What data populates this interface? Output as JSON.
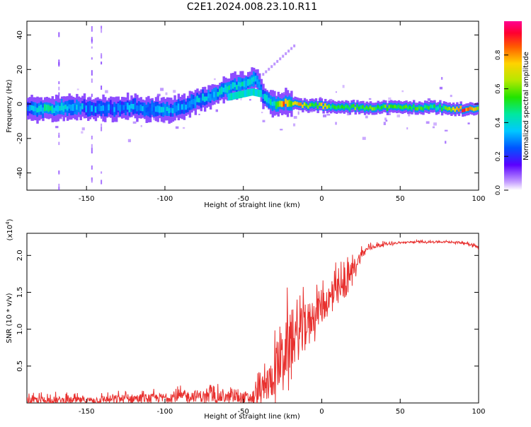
{
  "title": "C2E1.2024.008.23.10.R11",
  "chart_data": [
    {
      "type": "heatmap",
      "title": "",
      "xlabel": "Height of straight line (km)",
      "ylabel": "Frequency (Hz)",
      "xlim": [
        -188,
        100
      ],
      "ylim": [
        -50,
        48
      ],
      "xticks": [
        -150,
        -100,
        -50,
        0,
        50,
        100
      ],
      "yticks": [
        -40,
        -20,
        0,
        20,
        40
      ],
      "xtick_labels": [
        "-150",
        "-100",
        "-50",
        "0",
        "50",
        "100"
      ],
      "ytick_labels": [
        "-40",
        "-20",
        "0",
        "20",
        "40"
      ],
      "ridge": [
        {
          "x": -188,
          "y": -3,
          "a": 0.3
        },
        {
          "x": -175,
          "y": -3,
          "a": 0.45
        },
        {
          "x": -160,
          "y": -2,
          "a": 0.35
        },
        {
          "x": -150,
          "y": -2,
          "a": 0.3
        },
        {
          "x": -140,
          "y": -3,
          "a": 0.3
        },
        {
          "x": -130,
          "y": -2,
          "a": 0.3
        },
        {
          "x": -120,
          "y": -2,
          "a": 0.3
        },
        {
          "x": -110,
          "y": -3,
          "a": 0.3
        },
        {
          "x": -100,
          "y": -4,
          "a": 0.35
        },
        {
          "x": -90,
          "y": -2,
          "a": 0.3
        },
        {
          "x": -80,
          "y": 2,
          "a": 0.35
        },
        {
          "x": -70,
          "y": 5,
          "a": 0.35
        },
        {
          "x": -60,
          "y": 9,
          "a": 0.4
        },
        {
          "x": -50,
          "y": 12,
          "a": 0.4
        },
        {
          "x": -42,
          "y": 14,
          "a": 0.35
        },
        {
          "x": -38,
          "y": 4,
          "a": 0.35
        },
        {
          "x": -30,
          "y": 0,
          "a": 0.45
        },
        {
          "x": -25,
          "y": 1,
          "a": 0.85
        },
        {
          "x": -20,
          "y": 0,
          "a": 0.6
        },
        {
          "x": -15,
          "y": 0,
          "a": 0.8
        },
        {
          "x": -10,
          "y": -1,
          "a": 0.6
        },
        {
          "x": -5,
          "y": -1,
          "a": 0.5
        },
        {
          "x": 0,
          "y": -1,
          "a": 0.75
        },
        {
          "x": 5,
          "y": -2,
          "a": 0.5
        },
        {
          "x": 10,
          "y": -2,
          "a": 0.55
        },
        {
          "x": 20,
          "y": -2,
          "a": 0.55
        },
        {
          "x": 40,
          "y": -2,
          "a": 0.55
        },
        {
          "x": 60,
          "y": -2,
          "a": 0.55
        },
        {
          "x": 75,
          "y": -2,
          "a": 0.45
        },
        {
          "x": 80,
          "y": -3,
          "a": 0.6
        },
        {
          "x": 90,
          "y": -3,
          "a": 0.9
        },
        {
          "x": 98,
          "y": -3,
          "a": 0.7
        },
        {
          "x": 100,
          "y": -3,
          "a": 0.4
        }
      ],
      "secondary_ridge": [
        {
          "x": -60,
          "y": 4
        },
        {
          "x": -50,
          "y": 6
        },
        {
          "x": -45,
          "y": 7
        },
        {
          "x": -40,
          "y": 6
        }
      ],
      "colorbar": {
        "label": "Normalized spectral amplitude",
        "range": [
          0,
          1
        ],
        "ticks": [
          0.0,
          0.2,
          0.4,
          0.6,
          0.8
        ],
        "tick_labels": [
          "0.0",
          "0.2",
          "0.4",
          "0.6",
          "0.8"
        ]
      }
    },
    {
      "type": "line",
      "title": "",
      "xlabel": "Height of straight line (km)",
      "ylabel": "SNR (10 * v/v)",
      "y_multiplier_base": "(x10",
      "y_multiplier_exp": "4",
      "y_multiplier_close": ")",
      "xlim": [
        -188,
        100
      ],
      "ylim": [
        0,
        2.3
      ],
      "xticks": [
        -150,
        -100,
        -50,
        0,
        50,
        100
      ],
      "yticks": [
        0.5,
        1.0,
        1.5,
        2.0
      ],
      "xtick_labels": [
        "-150",
        "-100",
        "-50",
        "0",
        "50",
        "100"
      ],
      "ytick_labels": [
        "0.5",
        "1.0",
        "1.5",
        "2.0"
      ],
      "series": [
        {
          "name": "SNR",
          "color": "#e8302e",
          "envelope": {
            "x": [
              -188,
              -175,
              -150,
              -130,
              -100,
              -80,
              -60,
              -45,
              -40,
              -35,
              -30,
              -25,
              -20,
              -15,
              -10,
              -5,
              0,
              5,
              10,
              15,
              20,
              25,
              30,
              40,
              50,
              60,
              70,
              80,
              90,
              95,
              100
            ],
            "base": [
              0.03,
              0.02,
              0.03,
              0.04,
              0.06,
              0.08,
              0.06,
              0.05,
              0.1,
              0.18,
              0.35,
              0.55,
              0.75,
              0.85,
              1.0,
              1.15,
              1.3,
              1.35,
              1.45,
              1.55,
              1.8,
              1.98,
              2.1,
              2.15,
              2.17,
              2.18,
              2.18,
              2.18,
              2.17,
              2.15,
              2.1
            ],
            "amp": [
              0.1,
              0.15,
              0.1,
              0.15,
              0.15,
              0.2,
              0.2,
              0.2,
              0.4,
              0.55,
              0.75,
              1.0,
              0.95,
              0.85,
              0.7,
              0.6,
              0.55,
              0.55,
              0.5,
              0.45,
              0.3,
              0.18,
              0.08,
              0.05,
              0.03,
              0.03,
              0.03,
              0.03,
              0.04,
              0.05,
              0.06
            ]
          }
        }
      ]
    }
  ]
}
